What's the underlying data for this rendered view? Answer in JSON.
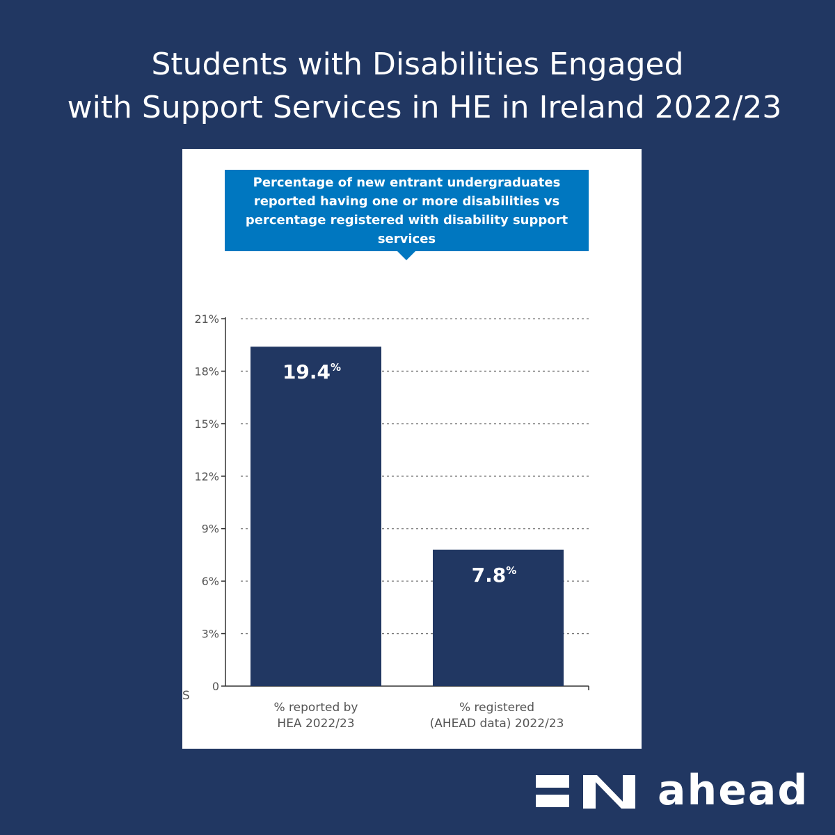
{
  "header": {
    "title_line1": "Students with Disabilities Engaged",
    "title_line2": "with Support Services in HE in Ireland 2022/23"
  },
  "callout": {
    "text": "Percentage of new entrant undergraduates reported having one or more disabilities vs percentage registered with disability support services"
  },
  "chart_data": {
    "type": "bar",
    "categories": [
      "% reported by HEA 2022/23",
      "% registered (AHEAD data) 2022/23"
    ],
    "category_lines": [
      [
        "% reported by",
        "HEA 2022/23"
      ],
      [
        "% registered",
        "(AHEAD data) 2022/23"
      ]
    ],
    "values": [
      19.4,
      7.8
    ],
    "value_labels": [
      "19.4",
      "7.8"
    ],
    "value_suffix": "%",
    "ylim": [
      0,
      21
    ],
    "yticks": [
      0,
      3,
      6,
      9,
      12,
      15,
      18,
      21
    ],
    "ytick_labels": [
      "0",
      "3%",
      "6%",
      "9%",
      "12%",
      "15%",
      "18%",
      "21%"
    ],
    "grid": "dashed-horizontal",
    "bar_color": "#213762"
  },
  "stray_glyph": "S",
  "logo": {
    "word": "ahead"
  },
  "colors": {
    "background": "#213762",
    "callout": "#0077c0",
    "bar": "#213762"
  }
}
